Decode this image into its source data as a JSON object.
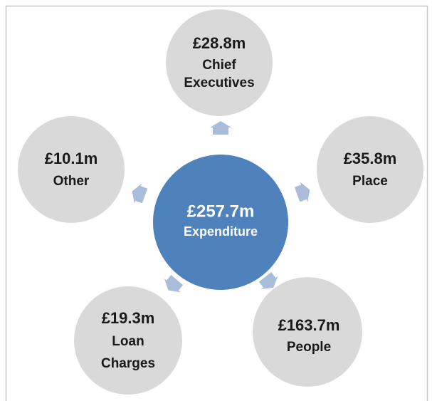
{
  "center": {
    "amount": "£257.7m",
    "label": "Expenditure"
  },
  "nodes": [
    {
      "amount": "£28.8m",
      "label": [
        "Chief",
        "Executives"
      ]
    },
    {
      "amount": "£35.8m",
      "label": [
        "Place"
      ]
    },
    {
      "amount": "£163.7m",
      "label": [
        "People"
      ]
    },
    {
      "amount": "£19.3m",
      "label": [
        "Loan",
        "Charges"
      ]
    },
    {
      "amount": "£10.1m",
      "label": [
        "Other"
      ]
    }
  ]
}
